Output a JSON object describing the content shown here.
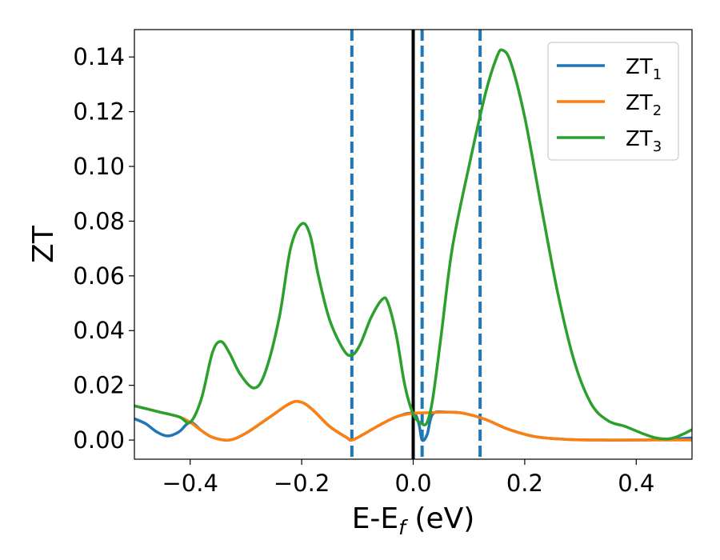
{
  "chart_data": {
    "type": "line",
    "xlabel": {
      "main": "E-E",
      "sub": "f",
      "tail": " (eV)"
    },
    "ylabel": "ZT",
    "xlim": [
      -0.5,
      0.5
    ],
    "ylim": [
      -0.007,
      0.15
    ],
    "xticks": [
      -0.4,
      -0.2,
      0.0,
      0.2,
      0.4
    ],
    "xtick_labels": [
      "−0.4",
      "−0.2",
      "0.0",
      "0.2",
      "0.4"
    ],
    "yticks": [
      0.0,
      0.02,
      0.04,
      0.06,
      0.08,
      0.1,
      0.12,
      0.14
    ],
    "ytick_labels": [
      "0.00",
      "0.02",
      "0.04",
      "0.06",
      "0.08",
      "0.10",
      "0.12",
      "0.14"
    ],
    "legend_position": "top-right",
    "vertical_lines": [
      {
        "x": 0.0,
        "style": "solid",
        "color": "#000000"
      },
      {
        "x": -0.11,
        "style": "dashed",
        "color": "#1f77b4"
      },
      {
        "x": 0.016,
        "style": "dashed",
        "color": "#1f77b4"
      },
      {
        "x": 0.12,
        "style": "dashed",
        "color": "#1f77b4"
      }
    ],
    "series": [
      {
        "name": "ZT",
        "sub": "1",
        "color": "#1f77b4",
        "points": [
          [
            -0.5,
            0.0078
          ],
          [
            -0.48,
            0.006
          ],
          [
            -0.46,
            0.003
          ],
          [
            -0.44,
            0.0015
          ],
          [
            -0.42,
            0.003
          ],
          [
            -0.4,
            0.0065
          ],
          [
            -0.38,
            0.0035
          ],
          [
            -0.36,
            0.001
          ],
          [
            -0.33,
            0.0
          ],
          [
            -0.3,
            0.0025
          ],
          [
            -0.26,
            0.008
          ],
          [
            -0.22,
            0.0135
          ],
          [
            -0.2,
            0.0138
          ],
          [
            -0.18,
            0.011
          ],
          [
            -0.15,
            0.005
          ],
          [
            -0.12,
            0.001
          ],
          [
            -0.11,
            0.0
          ],
          [
            -0.09,
            0.002
          ],
          [
            -0.06,
            0.0055
          ],
          [
            -0.03,
            0.0085
          ],
          [
            0.0,
            0.0098
          ],
          [
            0.01,
            0.006
          ],
          [
            0.016,
            0.0
          ],
          [
            0.025,
            0.002
          ],
          [
            0.035,
            0.0095
          ],
          [
            0.06,
            0.0102
          ],
          [
            0.09,
            0.0098
          ],
          [
            0.13,
            0.0075
          ],
          [
            0.17,
            0.004
          ],
          [
            0.22,
            0.0012
          ],
          [
            0.28,
            0.0002
          ],
          [
            0.34,
            0.0
          ],
          [
            0.4,
            0.0
          ],
          [
            0.45,
            0.0002
          ],
          [
            0.5,
            0.0008
          ]
        ]
      },
      {
        "name": "ZT",
        "sub": "2",
        "color": "#ff7f0e",
        "points": [
          [
            -0.5,
            0.0125
          ],
          [
            -0.46,
            0.0105
          ],
          [
            -0.42,
            0.0085
          ],
          [
            -0.4,
            0.0065
          ],
          [
            -0.38,
            0.0035
          ],
          [
            -0.36,
            0.001
          ],
          [
            -0.33,
            0.0
          ],
          [
            -0.3,
            0.0025
          ],
          [
            -0.26,
            0.008
          ],
          [
            -0.22,
            0.0135
          ],
          [
            -0.2,
            0.0138
          ],
          [
            -0.18,
            0.011
          ],
          [
            -0.15,
            0.005
          ],
          [
            -0.12,
            0.001
          ],
          [
            -0.11,
            0.0
          ],
          [
            -0.09,
            0.002
          ],
          [
            -0.06,
            0.0055
          ],
          [
            -0.03,
            0.0085
          ],
          [
            0.0,
            0.0098
          ],
          [
            0.03,
            0.01
          ],
          [
            0.06,
            0.0102
          ],
          [
            0.09,
            0.0098
          ],
          [
            0.13,
            0.0075
          ],
          [
            0.17,
            0.004
          ],
          [
            0.22,
            0.0012
          ],
          [
            0.28,
            0.0002
          ],
          [
            0.34,
            0.0
          ],
          [
            0.4,
            0.0
          ],
          [
            0.45,
            0.0
          ],
          [
            0.5,
            0.0
          ]
        ]
      },
      {
        "name": "ZT",
        "sub": "3",
        "color": "#2ca02c",
        "points": [
          [
            -0.5,
            0.0125
          ],
          [
            -0.46,
            0.0105
          ],
          [
            -0.42,
            0.0085
          ],
          [
            -0.4,
            0.0065
          ],
          [
            -0.38,
            0.015
          ],
          [
            -0.36,
            0.032
          ],
          [
            -0.345,
            0.036
          ],
          [
            -0.33,
            0.032
          ],
          [
            -0.31,
            0.024
          ],
          [
            -0.285,
            0.019
          ],
          [
            -0.265,
            0.025
          ],
          [
            -0.24,
            0.045
          ],
          [
            -0.22,
            0.07
          ],
          [
            -0.2,
            0.079
          ],
          [
            -0.185,
            0.075
          ],
          [
            -0.17,
            0.06
          ],
          [
            -0.15,
            0.044
          ],
          [
            -0.125,
            0.033
          ],
          [
            -0.11,
            0.031
          ],
          [
            -0.095,
            0.035
          ],
          [
            -0.075,
            0.045
          ],
          [
            -0.055,
            0.0515
          ],
          [
            -0.045,
            0.05
          ],
          [
            -0.03,
            0.038
          ],
          [
            -0.015,
            0.02
          ],
          [
            0.0,
            0.0095
          ],
          [
            0.015,
            0.006
          ],
          [
            0.025,
            0.0065
          ],
          [
            0.035,
            0.015
          ],
          [
            0.05,
            0.038
          ],
          [
            0.07,
            0.07
          ],
          [
            0.1,
            0.1
          ],
          [
            0.13,
            0.127
          ],
          [
            0.15,
            0.14
          ],
          [
            0.16,
            0.1425
          ],
          [
            0.175,
            0.138
          ],
          [
            0.2,
            0.118
          ],
          [
            0.23,
            0.085
          ],
          [
            0.26,
            0.053
          ],
          [
            0.29,
            0.028
          ],
          [
            0.32,
            0.013
          ],
          [
            0.35,
            0.007
          ],
          [
            0.38,
            0.005
          ],
          [
            0.41,
            0.0025
          ],
          [
            0.435,
            0.0008
          ],
          [
            0.46,
            0.0005
          ],
          [
            0.48,
            0.0018
          ],
          [
            0.5,
            0.0038
          ]
        ]
      }
    ]
  }
}
